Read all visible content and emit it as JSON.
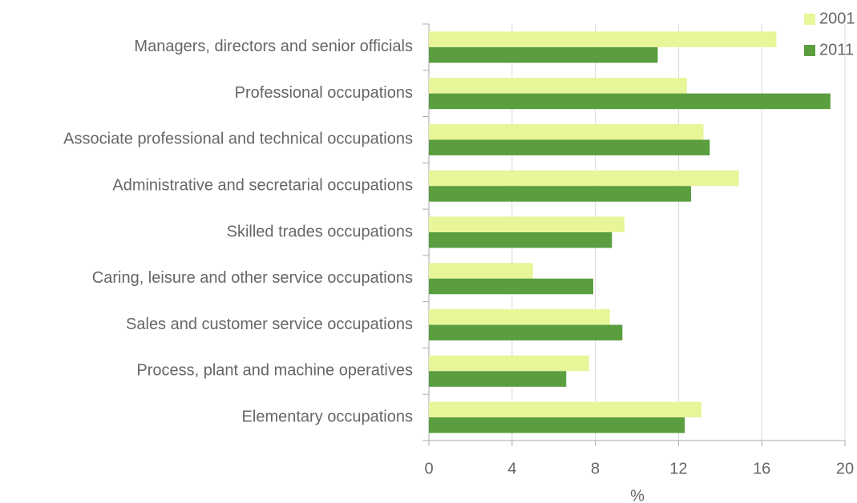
{
  "chart_data": {
    "type": "bar",
    "orientation": "horizontal",
    "categories": [
      "Managers, directors and senior officials",
      "Professional occupations",
      "Associate professional and technical occupations",
      "Administrative and secretarial occupations",
      "Skilled trades occupations",
      "Caring, leisure and other service occupations",
      "Sales and customer service occupations",
      "Process, plant and machine operatives",
      "Elementary occupations"
    ],
    "series": [
      {
        "name": "2001",
        "color": "#e8f599",
        "values": [
          16.7,
          12.4,
          13.2,
          14.9,
          9.4,
          5.0,
          8.7,
          7.7,
          13.1
        ]
      },
      {
        "name": "2011",
        "color": "#5a9e3f",
        "values": [
          11.0,
          19.3,
          13.5,
          12.6,
          8.8,
          7.9,
          9.3,
          6.6,
          12.3
        ]
      }
    ],
    "x_label": "%",
    "xlim": [
      0,
      20
    ],
    "xticks": [
      0,
      4,
      8,
      12,
      16,
      20
    ],
    "grid": true,
    "legend": "top-right"
  }
}
